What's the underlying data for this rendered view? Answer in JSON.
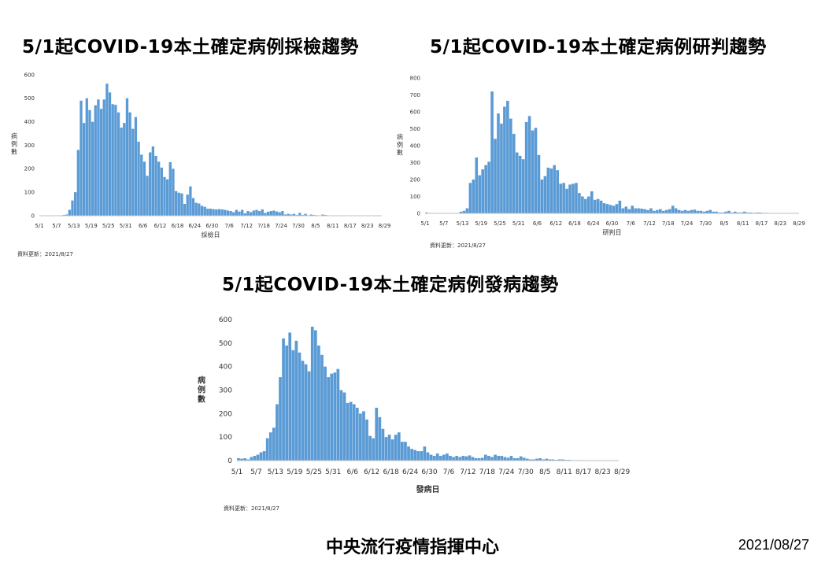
{
  "source_note": "資料更新：2021/8/27",
  "footer": {
    "org": "中央流行疫情指揮中心",
    "date": "2021/08/27"
  },
  "bar_color": "#5b9bd5",
  "chart_data": [
    {
      "type": "bar",
      "title": "5/1起COVID-19本土確定病例採檢趨勢",
      "xlabel": "採檢日",
      "ylabel": "病例數",
      "ylim": [
        0,
        600
      ],
      "yticks": [
        0,
        100,
        200,
        300,
        400,
        500,
        600
      ],
      "xticks": [
        "5/1",
        "5/7",
        "5/13",
        "5/19",
        "5/25",
        "5/31",
        "6/6",
        "6/12",
        "6/18",
        "6/24",
        "6/30",
        "7/6",
        "7/12",
        "7/18",
        "7/24",
        "7/30",
        "8/5",
        "8/11",
        "8/17",
        "8/23",
        "8/29"
      ],
      "categories_note": "daily 5/1 - 8/27",
      "values": [
        0,
        0,
        0,
        0,
        0,
        0,
        0,
        0,
        3,
        5,
        25,
        65,
        100,
        280,
        490,
        395,
        500,
        450,
        400,
        470,
        495,
        455,
        495,
        562,
        525,
        475,
        472,
        440,
        375,
        395,
        500,
        440,
        370,
        420,
        315,
        260,
        230,
        170,
        270,
        295,
        255,
        230,
        205,
        165,
        155,
        228,
        200,
        105,
        98,
        95,
        50,
        90,
        125,
        75,
        55,
        52,
        42,
        38,
        30,
        30,
        28,
        27,
        28,
        27,
        25,
        22,
        20,
        15,
        25,
        18,
        25,
        10,
        20,
        15,
        22,
        25,
        20,
        27,
        12,
        17,
        20,
        22,
        18,
        15,
        20,
        5,
        8,
        5,
        8,
        3,
        12,
        3,
        8,
        2,
        5,
        3,
        2,
        0,
        5,
        3,
        0,
        0,
        0,
        0,
        0,
        0,
        0,
        0,
        0,
        0,
        0,
        0,
        0,
        0,
        0,
        0,
        0,
        0,
        0
      ]
    },
    {
      "type": "bar",
      "title": "5/1起COVID-19本土確定病例研判趨勢",
      "xlabel": "研判日",
      "ylabel": "病例數",
      "ylim": [
        0,
        800
      ],
      "yticks": [
        0,
        100,
        200,
        300,
        400,
        500,
        600,
        700,
        800
      ],
      "xticks": [
        "5/1",
        "5/7",
        "5/13",
        "5/19",
        "5/25",
        "5/31",
        "6/6",
        "6/12",
        "6/18",
        "6/24",
        "6/30",
        "7/6",
        "7/12",
        "7/18",
        "7/24",
        "7/30",
        "8/5",
        "8/11",
        "8/17",
        "8/23",
        "8/29"
      ],
      "categories_note": "daily 5/1 - 8/27",
      "values": [
        5,
        0,
        0,
        0,
        0,
        0,
        0,
        0,
        0,
        0,
        0,
        10,
        15,
        30,
        180,
        200,
        330,
        225,
        260,
        285,
        305,
        720,
        440,
        590,
        530,
        630,
        665,
        560,
        470,
        360,
        340,
        320,
        540,
        575,
        490,
        505,
        345,
        200,
        220,
        270,
        265,
        285,
        255,
        175,
        180,
        145,
        170,
        175,
        180,
        120,
        100,
        85,
        100,
        130,
        80,
        85,
        75,
        60,
        55,
        50,
        45,
        55,
        75,
        30,
        40,
        25,
        45,
        30,
        30,
        28,
        25,
        20,
        30,
        15,
        20,
        25,
        15,
        20,
        25,
        45,
        30,
        20,
        15,
        20,
        15,
        20,
        22,
        15,
        15,
        10,
        15,
        20,
        10,
        10,
        5,
        5,
        10,
        15,
        5,
        10,
        5,
        5,
        10,
        5,
        5,
        3,
        5,
        5,
        3,
        3,
        0,
        2,
        0,
        0,
        0,
        0,
        0,
        0,
        0,
        0
      ]
    },
    {
      "type": "bar",
      "title": "5/1起COVID-19本土確定病例發病趨勢",
      "xlabel": "發病日",
      "ylabel": "病例數",
      "ylim": [
        0,
        600
      ],
      "yticks": [
        0,
        100,
        200,
        300,
        400,
        500,
        600
      ],
      "xticks": [
        "5/1",
        "5/7",
        "5/13",
        "5/19",
        "5/25",
        "5/31",
        "6/6",
        "6/12",
        "6/18",
        "6/24",
        "6/30",
        "7/6",
        "7/12",
        "7/18",
        "7/24",
        "7/30",
        "8/5",
        "8/11",
        "8/17",
        "8/23",
        "8/29"
      ],
      "categories_note": "daily 5/1 - 8/27",
      "values": [
        10,
        8,
        10,
        5,
        15,
        20,
        25,
        35,
        40,
        95,
        120,
        140,
        240,
        355,
        520,
        490,
        545,
        470,
        510,
        460,
        425,
        410,
        380,
        570,
        555,
        490,
        450,
        400,
        355,
        370,
        375,
        390,
        300,
        290,
        245,
        250,
        240,
        225,
        200,
        210,
        175,
        105,
        95,
        225,
        185,
        135,
        100,
        110,
        90,
        110,
        120,
        80,
        80,
        60,
        50,
        45,
        40,
        40,
        60,
        35,
        25,
        20,
        30,
        20,
        25,
        30,
        20,
        15,
        20,
        15,
        20,
        18,
        22,
        15,
        10,
        10,
        12,
        25,
        20,
        15,
        25,
        20,
        20,
        15,
        12,
        20,
        10,
        10,
        18,
        12,
        8,
        5,
        5,
        8,
        10,
        5,
        8,
        5,
        5,
        3,
        5,
        5,
        3,
        3,
        2,
        0,
        2,
        0,
        0,
        0,
        0,
        0,
        0,
        0,
        0,
        0,
        0,
        0,
        0
      ]
    }
  ]
}
